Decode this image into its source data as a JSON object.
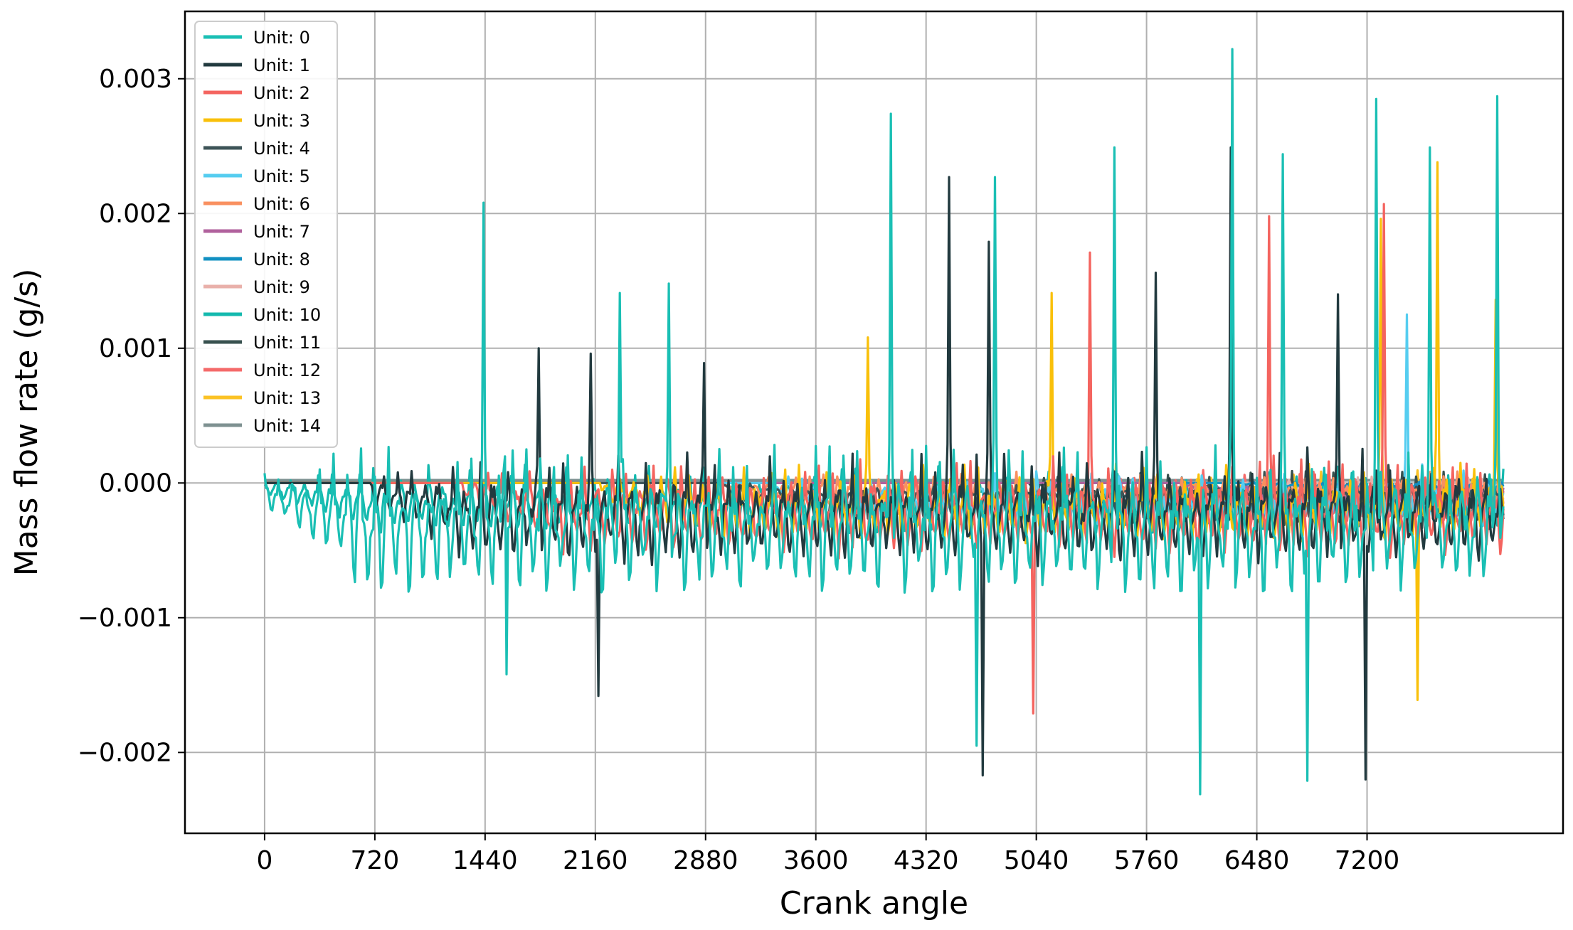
{
  "chart_data": {
    "type": "line",
    "title": "",
    "xlabel": "Crank angle",
    "ylabel": "Mass flow rate (g/s)",
    "xlim": [
      -520,
      8480
    ],
    "ylim": [
      -0.0026,
      0.0035
    ],
    "xticks": [
      0,
      720,
      1440,
      2160,
      2880,
      3600,
      4320,
      5040,
      5760,
      6480,
      7200
    ],
    "yticks": [
      -0.002,
      -0.001,
      0.0,
      0.001,
      0.002,
      0.003
    ],
    "ytick_labels": [
      "−0.002",
      "−0.001",
      "0.000",
      "0.001",
      "0.002",
      "0.003"
    ],
    "grid": true,
    "legend_position": "top-left",
    "series": [
      {
        "name": "Unit: 0",
        "color": "#1abfb4",
        "start": 0,
        "amp": 0.0011,
        "spikes": [
          [
            1425,
            0.00208
          ],
          [
            1570,
            0.00137
          ],
          [
            2320,
            0.00141
          ],
          [
            2640,
            0.00148
          ],
          [
            4090,
            0.00274
          ],
          [
            4770,
            0.00227
          ],
          [
            5550,
            0.00249
          ],
          [
            6320,
            0.00322
          ],
          [
            6650,
            0.00244
          ],
          [
            7260,
            0.00285
          ],
          [
            7610,
            0.00249
          ],
          [
            8050,
            0.00287
          ]
        ],
        "dips": [
          [
            1580,
            -0.00142
          ],
          [
            4650,
            -0.00195
          ],
          [
            6110,
            -0.00231
          ],
          [
            6810,
            -0.00221
          ]
        ]
      },
      {
        "name": "Unit: 1",
        "color": "#223a3f",
        "start": 700,
        "amp": 0.0008,
        "spikes": [
          [
            1790,
            0.001
          ],
          [
            2130,
            0.00096
          ],
          [
            2870,
            0.00089
          ],
          [
            4470,
            0.00227
          ],
          [
            4730,
            0.00179
          ],
          [
            5820,
            0.00156
          ],
          [
            6310,
            0.00249
          ],
          [
            7010,
            0.0014
          ]
        ],
        "dips": [
          [
            2180,
            -0.00158
          ],
          [
            4690,
            -0.00217
          ],
          [
            7190,
            -0.0022
          ]
        ]
      },
      {
        "name": "Unit: 2",
        "color": "#f4645f",
        "start": 1300,
        "amp": 0.0007,
        "spikes": [
          [
            5390,
            0.00171
          ],
          [
            6560,
            0.00198
          ],
          [
            7310,
            0.00207
          ]
        ],
        "dips": [
          [
            5020,
            -0.00171
          ]
        ]
      },
      {
        "name": "Unit: 3",
        "color": "#f9c00a",
        "start": 2200,
        "amp": 0.0006,
        "spikes": [
          [
            3940,
            0.00108
          ],
          [
            5140,
            0.00141
          ],
          [
            7290,
            0.00196
          ],
          [
            7660,
            0.00238
          ],
          [
            8040,
            0.00136
          ]
        ],
        "dips": [
          [
            7530,
            -0.00161
          ]
        ]
      },
      {
        "name": "Unit: 4",
        "color": "#3d5457",
        "start": 3000,
        "amp": 0.00045,
        "spikes": [],
        "dips": []
      },
      {
        "name": "Unit: 5",
        "color": "#55cdf0",
        "start": 3300,
        "amp": 0.0004,
        "spikes": [
          [
            7460,
            0.00125
          ]
        ],
        "dips": []
      },
      {
        "name": "Unit: 6",
        "color": "#f99060",
        "start": 3000,
        "amp": 0.00035,
        "spikes": [],
        "dips": []
      },
      {
        "name": "Unit: 7",
        "color": "#b0619d",
        "start": 6000,
        "amp": 0.0003,
        "spikes": [],
        "dips": []
      },
      {
        "name": "Unit: 8",
        "color": "#1290c2",
        "start": 6400,
        "amp": 8e-05,
        "spikes": [],
        "dips": []
      },
      {
        "name": "Unit: 9",
        "color": "#e9b0aa",
        "start": 6500,
        "amp": 0.00025,
        "spikes": [],
        "dips": []
      },
      {
        "name": "Unit: 10",
        "color": "#14b9ae",
        "start": 0,
        "amp": 0.0005,
        "spikes": [],
        "dips": []
      },
      {
        "name": "Unit: 11",
        "color": "#38514f",
        "start": 5000,
        "amp": 0.00045,
        "spikes": [],
        "dips": []
      },
      {
        "name": "Unit: 12",
        "color": "#f46a6a",
        "start": 5500,
        "amp": 0.0004,
        "spikes": [],
        "dips": []
      },
      {
        "name": "Unit: 13",
        "color": "#fbc224",
        "start": 6000,
        "amp": 0.00035,
        "spikes": [],
        "dips": []
      },
      {
        "name": "Unit: 14",
        "color": "#7e9191",
        "start": 0,
        "amp": 1e-05,
        "spikes": [],
        "dips": []
      }
    ],
    "x_end": 8090
  }
}
